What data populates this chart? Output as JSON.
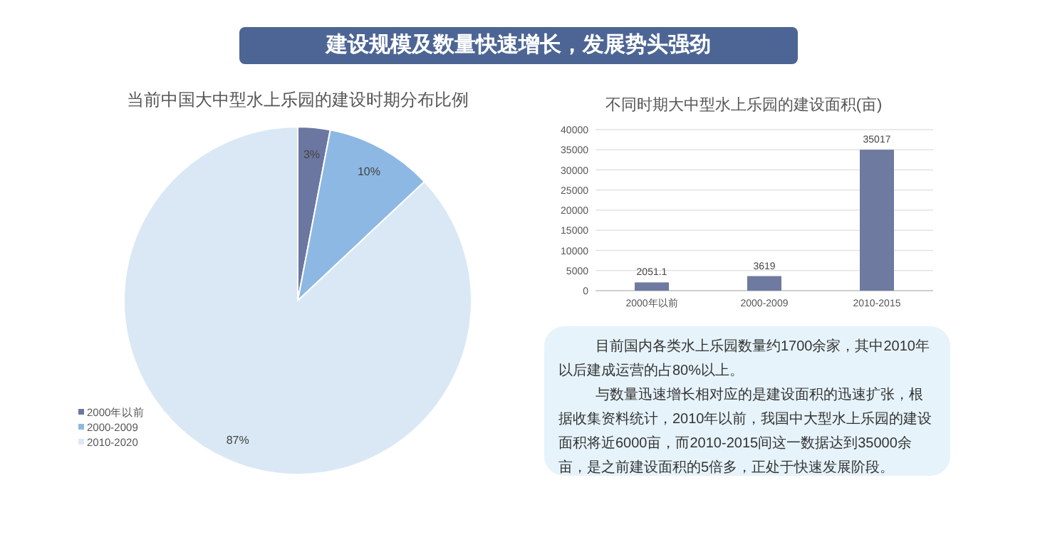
{
  "chart_data": [
    {
      "type": "other",
      "title": "建设规模及数量快速增长，发展势头强劲"
    },
    {
      "type": "pie",
      "title": "当前中国大中型水上乐园的建设时期分布比例",
      "categories": [
        "2000年以前",
        "2000-2009",
        "2010-2020"
      ],
      "values": [
        3,
        10,
        87
      ],
      "colors": [
        "#6b77a0",
        "#8db8e3",
        "#d9e8f4"
      ],
      "value_labels": [
        "3%",
        "10%",
        "87%"
      ],
      "legend": "left"
    },
    {
      "type": "bar",
      "title": "不同时期大中型水上乐园的建设面积(亩)",
      "categories": [
        "2000年以前",
        "2000-2009",
        "2010-2015"
      ],
      "values": [
        2051.1,
        3619,
        35017
      ],
      "color": "#6e7a9f",
      "ylim": [
        0,
        40000
      ],
      "yticks": [
        0,
        5000,
        10000,
        15000,
        20000,
        25000,
        30000,
        35000,
        40000
      ],
      "grid": "y",
      "data_labels": true
    },
    {
      "type": "other",
      "annotations": [
        "目前国内各类水上乐园数量约1700余家，其中2010年以后建成运营的占80%以上。",
        "与数量迅速增长相对应的是建设面积的迅速扩张，根据收集资料统计，2010年以前，我国中大型水上乐园的建设面积将近6000亩，而2010-2015间这一数据达到35000余亩，是之前建设面积的5倍多，正处于快速发展阶段。"
      ]
    }
  ]
}
